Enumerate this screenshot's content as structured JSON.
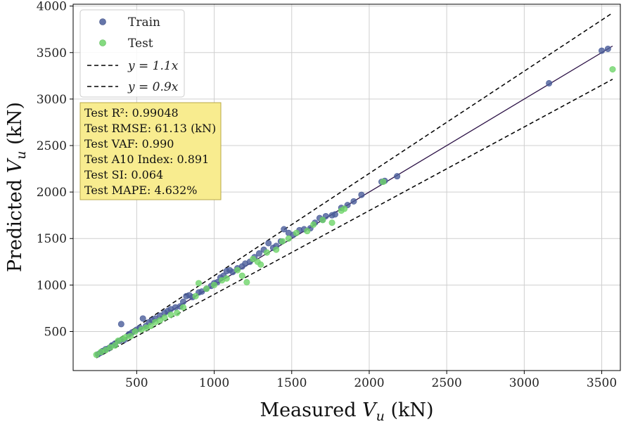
{
  "chart_data": {
    "type": "scatter",
    "title": "",
    "xlabel": "Measured V_u (kN)",
    "ylabel": "Predicted V_u (kN)",
    "xlabel_parts": {
      "prefix": "Measured ",
      "var": "V",
      "sub": "u",
      "suffix": " (kN)"
    },
    "ylabel_parts": {
      "prefix": "Predicted ",
      "var": "V",
      "sub": "u",
      "suffix": " (kN)"
    },
    "xlim": [
      90,
      3620
    ],
    "ylim": [
      80,
      4020
    ],
    "xticks": [
      500,
      1000,
      1500,
      2000,
      2500,
      3000,
      3500
    ],
    "yticks": [
      500,
      1000,
      1500,
      2000,
      2500,
      3000,
      3500,
      4000
    ],
    "grid": true,
    "legend": {
      "placement": "top-left",
      "entries": [
        {
          "label": "Train",
          "kind": "marker",
          "color": "#4a5d9a"
        },
        {
          "label": "Test",
          "kind": "marker",
          "color": "#6fd46a"
        },
        {
          "label": "y = 1.1x",
          "kind": "dashed-line",
          "color": "#000000"
        },
        {
          "label": "y = 0.9x",
          "kind": "dashed-line",
          "color": "#000000"
        }
      ]
    },
    "reference_lines": [
      {
        "name": "y = 1.1x",
        "slope": 1.1,
        "x_range": [
          240,
          3570
        ],
        "style": "dashed",
        "color": "#000000"
      },
      {
        "name": "y = 0.9x",
        "slope": 0.9,
        "x_range": [
          240,
          3570
        ],
        "style": "dashed",
        "color": "#000000"
      },
      {
        "name": "fit",
        "slope": 1.0,
        "x_range": [
          240,
          3570
        ],
        "style": "solid",
        "color": "#2b1045"
      }
    ],
    "series": [
      {
        "name": "Train",
        "color": "#4a5d9a",
        "points": [
          [
            250,
            255
          ],
          [
            265,
            270
          ],
          [
            280,
            290
          ],
          [
            300,
            310
          ],
          [
            320,
            320
          ],
          [
            340,
            350
          ],
          [
            360,
            370
          ],
          [
            390,
            400
          ],
          [
            400,
            580
          ],
          [
            420,
            410
          ],
          [
            450,
            470
          ],
          [
            470,
            490
          ],
          [
            500,
            520
          ],
          [
            520,
            540
          ],
          [
            540,
            640
          ],
          [
            560,
            560
          ],
          [
            580,
            600
          ],
          [
            600,
            620
          ],
          [
            620,
            640
          ],
          [
            650,
            670
          ],
          [
            680,
            700
          ],
          [
            700,
            720
          ],
          [
            720,
            740
          ],
          [
            750,
            760
          ],
          [
            780,
            770
          ],
          [
            800,
            820
          ],
          [
            820,
            880
          ],
          [
            840,
            890
          ],
          [
            860,
            870
          ],
          [
            900,
            920
          ],
          [
            920,
            930
          ],
          [
            950,
            960
          ],
          [
            980,
            990
          ],
          [
            1000,
            1020
          ],
          [
            1020,
            1030
          ],
          [
            1040,
            1080
          ],
          [
            1060,
            1100
          ],
          [
            1080,
            1150
          ],
          [
            1100,
            1160
          ],
          [
            1120,
            1140
          ],
          [
            1150,
            1180
          ],
          [
            1180,
            1200
          ],
          [
            1200,
            1230
          ],
          [
            1230,
            1250
          ],
          [
            1260,
            1300
          ],
          [
            1290,
            1340
          ],
          [
            1320,
            1380
          ],
          [
            1350,
            1450
          ],
          [
            1380,
            1400
          ],
          [
            1400,
            1420
          ],
          [
            1430,
            1470
          ],
          [
            1450,
            1600
          ],
          [
            1480,
            1560
          ],
          [
            1510,
            1540
          ],
          [
            1550,
            1590
          ],
          [
            1580,
            1600
          ],
          [
            1620,
            1610
          ],
          [
            1650,
            1670
          ],
          [
            1680,
            1720
          ],
          [
            1700,
            1700
          ],
          [
            1720,
            1740
          ],
          [
            1760,
            1750
          ],
          [
            1780,
            1760
          ],
          [
            1820,
            1830
          ],
          [
            1860,
            1860
          ],
          [
            1900,
            1900
          ],
          [
            1950,
            1970
          ],
          [
            2080,
            2110
          ],
          [
            2100,
            2120
          ],
          [
            2180,
            2170
          ],
          [
            3160,
            3170
          ],
          [
            3500,
            3520
          ],
          [
            3540,
            3540
          ]
        ]
      },
      {
        "name": "Test",
        "color": "#6fd46a",
        "points": [
          [
            240,
            250
          ],
          [
            270,
            280
          ],
          [
            300,
            300
          ],
          [
            330,
            330
          ],
          [
            360,
            350
          ],
          [
            380,
            400
          ],
          [
            410,
            420
          ],
          [
            430,
            440
          ],
          [
            460,
            450
          ],
          [
            490,
            500
          ],
          [
            530,
            520
          ],
          [
            560,
            540
          ],
          [
            590,
            560
          ],
          [
            620,
            600
          ],
          [
            650,
            620
          ],
          [
            680,
            650
          ],
          [
            720,
            680
          ],
          [
            760,
            700
          ],
          [
            800,
            760
          ],
          [
            880,
            880
          ],
          [
            900,
            1020
          ],
          [
            950,
            960
          ],
          [
            1000,
            1000
          ],
          [
            1050,
            1050
          ],
          [
            1080,
            1070
          ],
          [
            1150,
            1160
          ],
          [
            1180,
            1100
          ],
          [
            1210,
            1030
          ],
          [
            1250,
            1280
          ],
          [
            1280,
            1250
          ],
          [
            1300,
            1220
          ],
          [
            1340,
            1350
          ],
          [
            1400,
            1380
          ],
          [
            1440,
            1470
          ],
          [
            1480,
            1500
          ],
          [
            1530,
            1560
          ],
          [
            1600,
            1580
          ],
          [
            1640,
            1650
          ],
          [
            1700,
            1700
          ],
          [
            1760,
            1670
          ],
          [
            1820,
            1800
          ],
          [
            1840,
            1820
          ],
          [
            2090,
            2110
          ],
          [
            3570,
            3320
          ]
        ]
      }
    ],
    "annotation": {
      "placement": "upper-left",
      "lines": [
        "Test R²: 0.99048",
        "Test RMSE: 61.13 (kN)",
        "Test VAF: 0.990",
        "Test A10 Index: 0.891",
        "Test SI: 0.064",
        "Test MAPE: 4.632%"
      ]
    }
  }
}
